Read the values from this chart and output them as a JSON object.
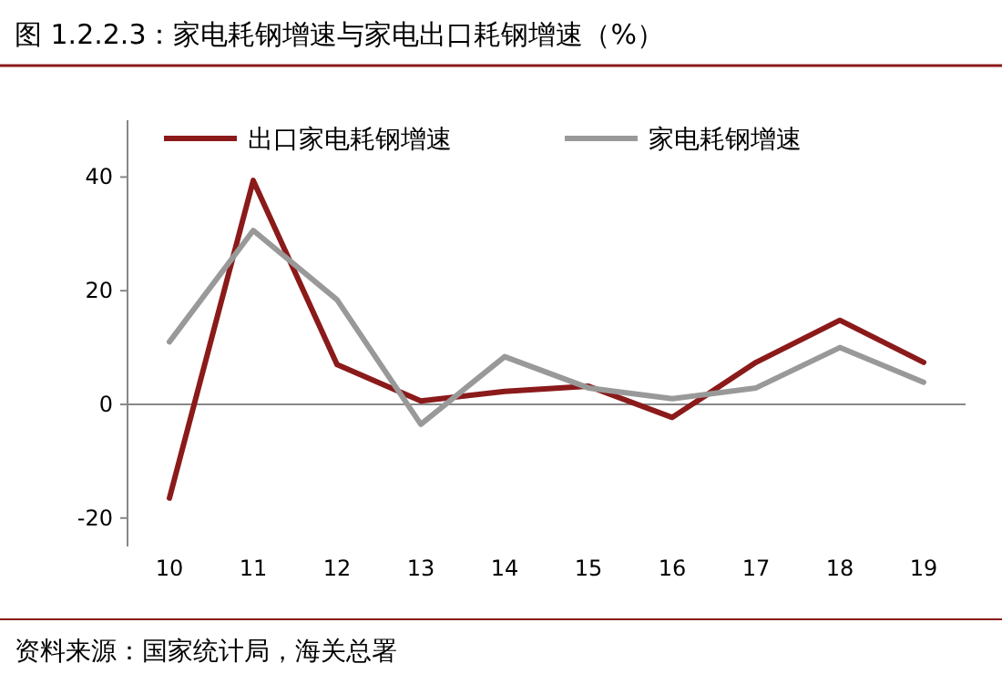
{
  "chart_data": {
    "type": "line",
    "title": "图 1.2.2.3：家电耗钢增速与家电出口耗钢增速（%）",
    "categories": [
      "10",
      "11",
      "12",
      "13",
      "14",
      "15",
      "16",
      "17",
      "18",
      "19"
    ],
    "series": [
      {
        "name": "出口家电耗钢增速",
        "color": "#8b1a1a",
        "values": [
          -16.5,
          39.4,
          7,
          0.6,
          2.3,
          3.2,
          -2.3,
          7.4,
          14.8,
          7.4
        ]
      },
      {
        "name": "家电耗钢增速",
        "color": "#999999",
        "values": [
          11,
          30.6,
          18.4,
          -3.5,
          8.4,
          2.9,
          1,
          2.9,
          10,
          3.9
        ]
      }
    ],
    "ylim": [
      -25,
      50
    ],
    "yticks": [
      -20,
      0,
      20,
      40
    ],
    "legend": "top",
    "marker": "none",
    "line_style": "solid",
    "annotations": [
      "资料来源：国家统计局，海关总署"
    ]
  }
}
